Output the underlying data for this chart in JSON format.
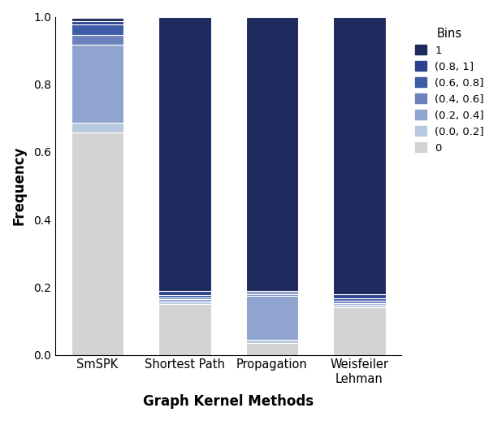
{
  "categories": [
    "SmSPK",
    "Shortest Path",
    "Propagation",
    "Weisfeiler\nLehman"
  ],
  "bins": [
    "1",
    "(0.8, 1]",
    "(0.6, 0.8]",
    "(0.4, 0.6]",
    "(0.2, 0.4]",
    "(0.0, 0.2]",
    "0"
  ],
  "colors": [
    "#1e2a5e",
    "#2e4090",
    "#3d5da8",
    "#6b82be",
    "#8fa4cf",
    "#b8c9e0",
    "#d3d3d3"
  ],
  "data": {
    "SmSPK": [
      0.01,
      0.01,
      0.03,
      0.03,
      0.23,
      0.03,
      0.657
    ],
    "Shortest Path": [
      0.81,
      0.012,
      0.008,
      0.006,
      0.006,
      0.008,
      0.15
    ],
    "Propagation": [
      0.81,
      0.005,
      0.005,
      0.005,
      0.13,
      0.01,
      0.035
    ],
    "Weisfeiler\nLehman": [
      0.82,
      0.012,
      0.008,
      0.006,
      0.006,
      0.008,
      0.14
    ]
  },
  "ylabel": "Frequency",
  "xlabel": "Graph Kernel Methods",
  "ylim": [
    0.0,
    1.0
  ],
  "background_color": "#ffffff",
  "legend_title": "Bins",
  "bar_width": 0.6,
  "figsize": [
    6.18,
    5.18
  ],
  "dpi": 100
}
